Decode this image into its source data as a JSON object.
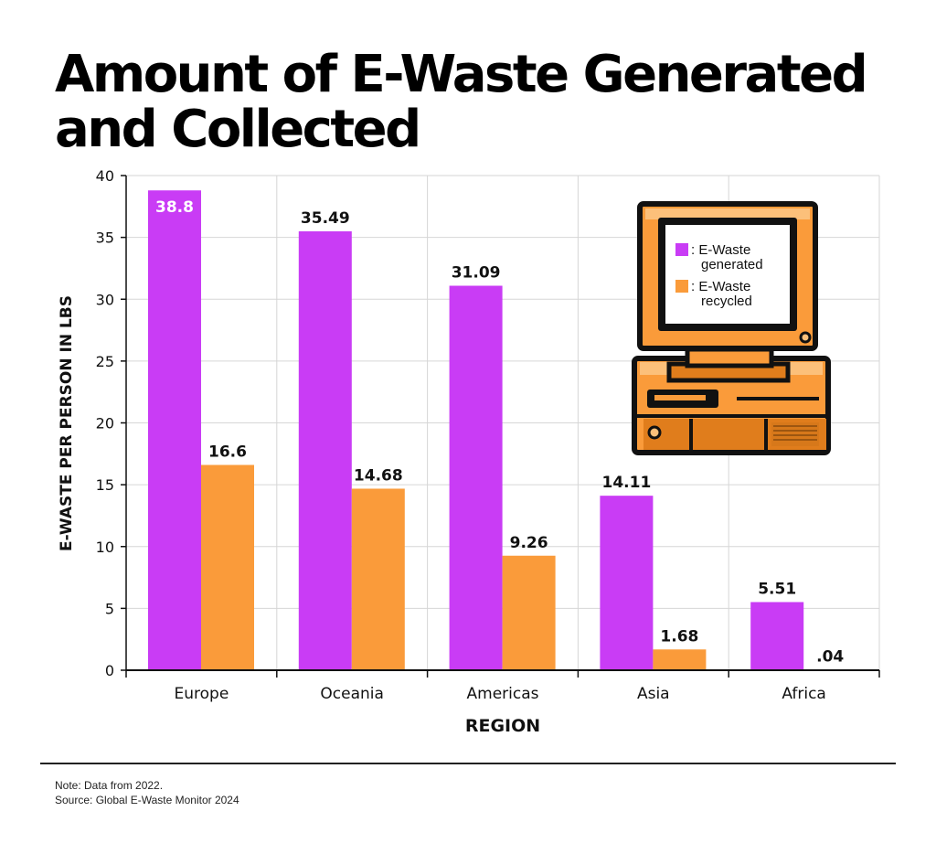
{
  "title": "Amount of E-Waste Generated and Collected",
  "colors": {
    "generated": "#c93cf5",
    "recycled": "#fa9b3a",
    "grid": "#d6d6d6"
  },
  "chart_data": {
    "type": "bar",
    "categories": [
      "Europe",
      "Oceania",
      "Americas",
      "Asia",
      "Africa"
    ],
    "series": [
      {
        "name": ": E-Waste generated",
        "values": [
          38.8,
          35.49,
          31.09,
          14.11,
          5.51
        ],
        "labels": [
          "38.8",
          "35.49",
          "31.09",
          "14.11",
          "5.51"
        ]
      },
      {
        "name": ": E-Waste recycled",
        "values": [
          16.6,
          14.68,
          9.26,
          1.68,
          0.04
        ],
        "labels": [
          "16.6",
          "14.68",
          "9.26",
          "1.68",
          ".04"
        ]
      }
    ],
    "xlabel": "REGION",
    "ylabel": "E-WASTE PER PERSON IN LBS",
    "ylim": [
      0,
      40
    ],
    "yticks": [
      0,
      5,
      10,
      15,
      20,
      25,
      30,
      35,
      40
    ],
    "grid": true,
    "legend": {
      "placement": "inside a computer-monitor illustration, top-right",
      "entries": [
        {
          "line1": ": E-Waste",
          "line2": "generated"
        },
        {
          "line1": ": E-Waste",
          "line2": "recycled"
        }
      ]
    }
  },
  "footer": {
    "note": "Note: Data from 2022.",
    "source": "Source: Global E-Waste Monitor 2024"
  }
}
